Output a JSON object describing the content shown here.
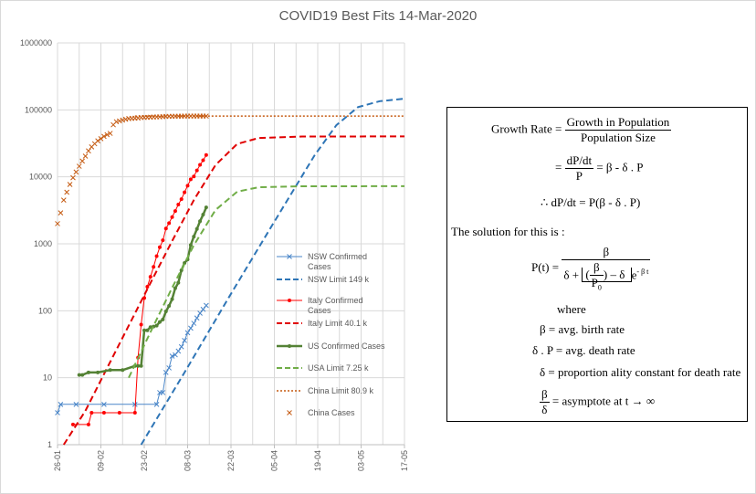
{
  "chart_data": {
    "type": "line",
    "title": "COVID19 Best Fits 14-Mar-2020",
    "y_scale": "log",
    "ylim": [
      1,
      1000000
    ],
    "y_tick_labels": [
      "1",
      "10",
      "100",
      "1000",
      "10000",
      "100000",
      "1000000"
    ],
    "x_tick_labels": [
      "26-01",
      "09-02",
      "23-02",
      "08-03",
      "22-03",
      "05-04",
      "19-04",
      "03-05",
      "17-05"
    ],
    "xlim": [
      "2020-01-26",
      "2020-05-17"
    ],
    "grid": true,
    "legend_position": "right-inside",
    "series": [
      {
        "name": "NSW Confirmed Cases",
        "style": "line-x-marker",
        "color": "#4a86c8",
        "x": [
          "2020-01-26",
          "2020-01-27",
          "2020-02-01",
          "2020-02-10",
          "2020-02-20",
          "2020-02-27",
          "2020-02-28",
          "2020-02-29",
          "2020-03-01",
          "2020-03-02",
          "2020-03-03",
          "2020-03-04",
          "2020-03-05",
          "2020-03-06",
          "2020-03-07",
          "2020-03-08",
          "2020-03-09",
          "2020-03-10",
          "2020-03-11",
          "2020-03-12",
          "2020-03-13",
          "2020-03-14"
        ],
        "y": [
          3,
          4,
          4,
          4,
          4,
          4,
          6,
          6,
          12,
          14,
          21,
          22,
          25,
          29,
          36,
          47,
          55,
          65,
          78,
          92,
          105,
          120
        ]
      },
      {
        "name": "NSW Limit 149 k",
        "style": "dashed",
        "color": "#2e75b6",
        "x": [
          "2020-02-22",
          "2020-03-07",
          "2020-03-21",
          "2020-04-04",
          "2020-04-18",
          "2020-04-25",
          "2020-05-02",
          "2020-05-09",
          "2020-05-17"
        ],
        "y": [
          1,
          12,
          150,
          1800,
          21000,
          59000,
          110000,
          135000,
          147000
        ]
      },
      {
        "name": "Italy Confirmed Cases",
        "style": "line-dot-marker",
        "color": "#ff0000",
        "x": [
          "2020-01-31",
          "2020-02-05",
          "2020-02-06",
          "2020-02-10",
          "2020-02-15",
          "2020-02-20",
          "2020-02-21",
          "2020-02-22",
          "2020-02-23",
          "2020-02-24",
          "2020-02-25",
          "2020-02-26",
          "2020-02-27",
          "2020-02-28",
          "2020-02-29",
          "2020-03-01",
          "2020-03-02",
          "2020-03-03",
          "2020-03-04",
          "2020-03-05",
          "2020-03-06",
          "2020-03-07",
          "2020-03-08",
          "2020-03-09",
          "2020-03-10",
          "2020-03-11",
          "2020-03-12",
          "2020-03-13",
          "2020-03-14"
        ],
        "y": [
          2,
          2,
          3,
          3,
          3,
          3,
          20,
          62,
          155,
          229,
          322,
          453,
          655,
          888,
          1128,
          1694,
          2036,
          2502,
          3089,
          3858,
          4636,
          5883,
          7375,
          9172,
          10149,
          12462,
          15113,
          17660,
          21157
        ]
      },
      {
        "name": "Italy Limit 40.1 k",
        "style": "dashed",
        "color": "#e00000",
        "x": [
          "2020-01-28",
          "2020-02-04",
          "2020-02-11",
          "2020-02-18",
          "2020-02-25",
          "2020-03-03",
          "2020-03-10",
          "2020-03-17",
          "2020-03-24",
          "2020-03-31",
          "2020-04-14",
          "2020-05-17"
        ],
        "y": [
          1,
          3.2,
          14,
          60,
          260,
          1100,
          4500,
          15000,
          31000,
          38000,
          40000,
          40100
        ]
      },
      {
        "name": "US Confirmed Cases",
        "style": "line-dot-marker",
        "color": "#548235",
        "x": [
          "2020-02-02",
          "2020-02-03",
          "2020-02-05",
          "2020-02-08",
          "2020-02-12",
          "2020-02-16",
          "2020-02-20",
          "2020-02-21",
          "2020-02-22",
          "2020-02-23",
          "2020-02-24",
          "2020-02-25",
          "2020-02-26",
          "2020-02-27",
          "2020-02-28",
          "2020-02-29",
          "2020-03-01",
          "2020-03-02",
          "2020-03-03",
          "2020-03-04",
          "2020-03-05",
          "2020-03-06",
          "2020-03-07",
          "2020-03-08",
          "2020-03-09",
          "2020-03-10",
          "2020-03-11",
          "2020-03-12",
          "2020-03-13",
          "2020-03-14"
        ],
        "y": [
          11,
          11,
          12,
          12,
          13,
          13,
          15,
          15,
          15,
          51,
          51,
          57,
          58,
          60,
          68,
          74,
          98,
          118,
          149,
          217,
          262,
          402,
          518,
          583,
          959,
          1281,
          1663,
          2179,
          2726,
          3499
        ]
      },
      {
        "name": "USA Limit 7.25 k",
        "style": "dashed",
        "color": "#70ad47",
        "x": [
          "2020-02-18",
          "2020-02-25",
          "2020-03-03",
          "2020-03-10",
          "2020-03-17",
          "2020-03-24",
          "2020-03-31",
          "2020-04-14",
          "2020-05-17"
        ],
        "y": [
          10,
          48,
          220,
          950,
          3200,
          6000,
          7000,
          7240,
          7250
        ]
      },
      {
        "name": "China Limit 80.9 k",
        "style": "dotted",
        "color": "#c55a11",
        "x": [
          "2020-02-20",
          "2020-05-17"
        ],
        "y": [
          80900,
          80900
        ]
      },
      {
        "name": "China Cases",
        "style": "x-marker",
        "color": "#c55a11",
        "x": [
          "2020-01-26",
          "2020-01-27",
          "2020-01-28",
          "2020-01-29",
          "2020-01-30",
          "2020-01-31",
          "2020-02-01",
          "2020-02-02",
          "2020-02-03",
          "2020-02-04",
          "2020-02-05",
          "2020-02-06",
          "2020-02-07",
          "2020-02-08",
          "2020-02-09",
          "2020-02-10",
          "2020-02-11",
          "2020-02-12",
          "2020-02-13",
          "2020-02-14",
          "2020-02-15",
          "2020-02-16",
          "2020-02-17",
          "2020-02-18",
          "2020-02-19",
          "2020-02-20",
          "2020-02-21",
          "2020-02-22",
          "2020-02-23",
          "2020-02-24",
          "2020-02-25",
          "2020-02-26",
          "2020-02-27",
          "2020-02-28",
          "2020-02-29",
          "2020-03-01",
          "2020-03-02",
          "2020-03-03",
          "2020-03-04",
          "2020-03-05",
          "2020-03-06",
          "2020-03-07",
          "2020-03-08",
          "2020-03-09",
          "2020-03-10",
          "2020-03-11",
          "2020-03-12",
          "2020-03-13",
          "2020-03-14"
        ],
        "y": [
          2000,
          2900,
          4500,
          5900,
          7700,
          9700,
          11800,
          14400,
          17200,
          20400,
          24400,
          28000,
          31200,
          34500,
          37100,
          40200,
          42600,
          44600,
          59800,
          66500,
          68400,
          70500,
          72400,
          74200,
          74600,
          75000,
          75500,
          76900,
          77000,
          77200,
          77700,
          78100,
          78500,
          78800,
          79300,
          79800,
          80000,
          80200,
          80300,
          80400,
          80500,
          80700,
          80700,
          80700,
          80800,
          80800,
          80800,
          80800,
          80800
        ]
      }
    ]
  },
  "formula": {
    "growth_rate_label": "Growth Rate",
    "equals": "=",
    "growth_num": "Growth  in Population",
    "growth_den": "Population  Size",
    "dP": "dP",
    "dt": "dt",
    "P": "P",
    "beta_minus_delta_p": "= β  -  δ . P",
    "therefore": "∴",
    "dP_dt_eq": "= P(β - δ . P)",
    "solution_text": "The solution for this is :",
    "Pt": "P(t) =",
    "beta": "β",
    "delta_plus": "δ +",
    "beta_over_p0_beta": "β",
    "p0": "P",
    "p0_sub": "0",
    "minus_delta": "– δ",
    "exp": "e",
    "exp_power": "- β t",
    "where": "where",
    "beta_def": "β = avg. birth rate",
    "delta_p_def": "δ . P = avg. death rate",
    "delta_def": "δ = proportion ality constant  for death rate",
    "asym_num": "β",
    "asym_den": "δ",
    "asym_text": "= asymptote  at t → ∞"
  }
}
